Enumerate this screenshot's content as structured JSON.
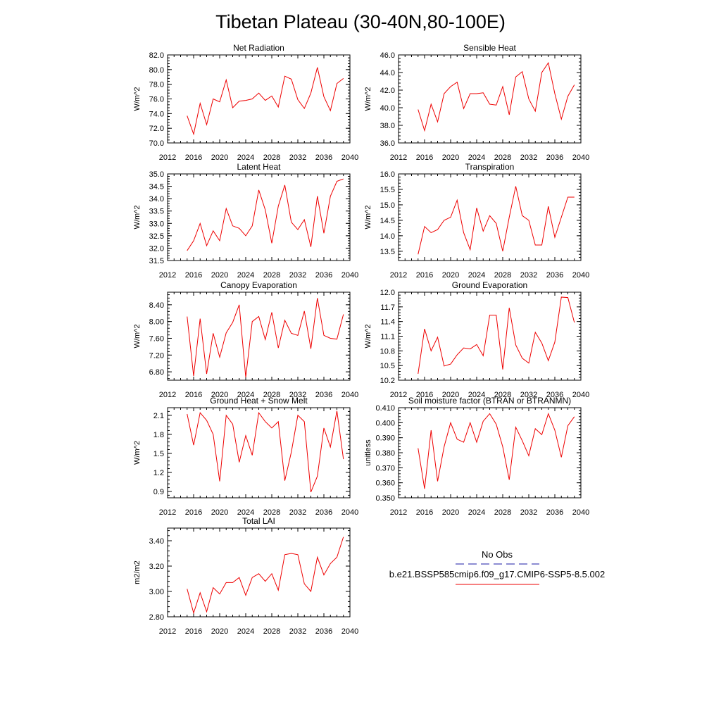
{
  "figure": {
    "suptitle": "Tibetan Plateau (30-40N,80-100E)"
  },
  "legend": {
    "entries": [
      {
        "label": "No Obs",
        "color": "#1a1aa6",
        "style": "dashed"
      },
      {
        "label": "b.e21.BSSP585cmip6.f09_g17.CMIP6-SSP5-8.5.002",
        "color": "#ee0000",
        "style": "solid"
      }
    ]
  },
  "chart_data": [
    {
      "type": "line",
      "title": "Net Radiation",
      "ylabel": "W/m^2",
      "xlabel": "",
      "xlim": [
        2012,
        2040
      ],
      "xticks": [
        "2012",
        "2016",
        "2020",
        "2024",
        "2028",
        "2032",
        "2036",
        "2040"
      ],
      "ylim": [
        70.0,
        82.0
      ],
      "yticks": [
        "70.0",
        "72.0",
        "74.0",
        "76.0",
        "78.0",
        "80.0",
        "82.0"
      ],
      "x": [
        2015,
        2016,
        2017,
        2018,
        2019,
        2020,
        2021,
        2022,
        2023,
        2024,
        2025,
        2026,
        2027,
        2028,
        2029,
        2030,
        2031,
        2032,
        2033,
        2034,
        2035,
        2036,
        2037,
        2038,
        2039
      ],
      "series": [
        {
          "color": "#ee0000",
          "values": [
            73.7,
            71.2,
            75.4,
            72.5,
            76.0,
            75.6,
            78.6,
            74.8,
            75.7,
            75.8,
            76.0,
            76.8,
            75.8,
            76.4,
            74.9,
            79.1,
            78.7,
            75.9,
            74.7,
            76.8,
            80.3,
            76.3,
            74.4,
            78.1,
            78.8
          ]
        }
      ]
    },
    {
      "type": "line",
      "title": "Sensible Heat",
      "ylabel": "W/m^2",
      "xlabel": "",
      "xlim": [
        2012,
        2040
      ],
      "xticks": [
        "2012",
        "2016",
        "2020",
        "2024",
        "2028",
        "2032",
        "2036",
        "2040"
      ],
      "ylim": [
        36.0,
        46.0
      ],
      "yticks": [
        "36.0",
        "38.0",
        "40.0",
        "42.0",
        "44.0",
        "46.0"
      ],
      "x": [
        2015,
        2016,
        2017,
        2018,
        2019,
        2020,
        2021,
        2022,
        2023,
        2024,
        2025,
        2026,
        2027,
        2028,
        2029,
        2030,
        2031,
        2032,
        2033,
        2034,
        2035,
        2036,
        2037,
        2038,
        2039
      ],
      "series": [
        {
          "color": "#ee0000",
          "values": [
            39.8,
            37.4,
            40.4,
            38.4,
            41.6,
            42.4,
            42.9,
            39.9,
            41.6,
            41.6,
            41.7,
            40.4,
            40.3,
            42.4,
            39.2,
            43.5,
            44.1,
            41.0,
            39.6,
            44.0,
            45.1,
            41.6,
            38.7,
            41.3,
            42.6
          ]
        }
      ]
    },
    {
      "type": "line",
      "title": "Latent Heat",
      "ylabel": "W/m^2",
      "xlabel": "",
      "xlim": [
        2012,
        2040
      ],
      "xticks": [
        "2012",
        "2016",
        "2020",
        "2024",
        "2028",
        "2032",
        "2036",
        "2040"
      ],
      "ylim": [
        31.5,
        35.0
      ],
      "yticks": [
        "31.5",
        "32.0",
        "32.5",
        "33.0",
        "33.5",
        "34.0",
        "34.5",
        "35.0"
      ],
      "x": [
        2015,
        2016,
        2017,
        2018,
        2019,
        2020,
        2021,
        2022,
        2023,
        2024,
        2025,
        2026,
        2027,
        2028,
        2029,
        2030,
        2031,
        2032,
        2033,
        2034,
        2035,
        2036,
        2037,
        2038,
        2039
      ],
      "series": [
        {
          "color": "#ee0000",
          "values": [
            31.9,
            32.3,
            33.0,
            32.1,
            32.7,
            32.3,
            33.6,
            32.9,
            32.8,
            32.5,
            32.9,
            34.35,
            33.55,
            32.2,
            33.7,
            34.55,
            33.05,
            32.75,
            33.15,
            32.05,
            34.1,
            32.6,
            34.1,
            34.7,
            34.8
          ]
        }
      ]
    },
    {
      "type": "line",
      "title": "Transpiration",
      "ylabel": "W/m^2",
      "xlabel": "",
      "xlim": [
        2012,
        2040
      ],
      "xticks": [
        "2012",
        "2016",
        "2020",
        "2024",
        "2028",
        "2032",
        "2036",
        "2040"
      ],
      "ylim": [
        13.2,
        16.0
      ],
      "yticks": [
        "13.5",
        "14.0",
        "14.5",
        "15.0",
        "15.5",
        "16.0"
      ],
      "x": [
        2015,
        2016,
        2017,
        2018,
        2019,
        2020,
        2021,
        2022,
        2023,
        2024,
        2025,
        2026,
        2027,
        2028,
        2029,
        2030,
        2031,
        2032,
        2033,
        2034,
        2035,
        2036,
        2037,
        2038,
        2039
      ],
      "series": [
        {
          "color": "#ee0000",
          "values": [
            13.4,
            14.3,
            14.1,
            14.2,
            14.5,
            14.6,
            15.15,
            14.1,
            13.55,
            14.9,
            14.15,
            14.65,
            14.4,
            13.5,
            14.6,
            15.6,
            14.65,
            14.5,
            13.7,
            13.7,
            14.95,
            13.95,
            14.6,
            15.25,
            15.25
          ]
        }
      ]
    },
    {
      "type": "line",
      "title": "Canopy Evaporation",
      "ylabel": "W/m^2",
      "xlabel": "",
      "xlim": [
        2012,
        2040
      ],
      "xticks": [
        "2012",
        "2016",
        "2020",
        "2024",
        "2028",
        "2032",
        "2036",
        "2040"
      ],
      "ylim": [
        6.6,
        8.7
      ],
      "yticks": [
        "6.80",
        "7.20",
        "7.60",
        "8.00",
        "8.40"
      ],
      "x": [
        2015,
        2016,
        2017,
        2018,
        2019,
        2020,
        2021,
        2022,
        2023,
        2024,
        2025,
        2026,
        2027,
        2028,
        2029,
        2030,
        2031,
        2032,
        2033,
        2034,
        2035,
        2036,
        2037,
        2038,
        2039
      ],
      "series": [
        {
          "color": "#ee0000",
          "values": [
            8.12,
            6.7,
            8.07,
            6.75,
            7.72,
            7.15,
            7.73,
            7.98,
            8.4,
            6.67,
            8.0,
            8.12,
            7.57,
            8.22,
            7.37,
            8.03,
            7.72,
            7.67,
            8.25,
            7.35,
            8.56,
            7.67,
            7.6,
            7.58,
            8.17
          ]
        }
      ]
    },
    {
      "type": "line",
      "title": "Ground Evaporation",
      "ylabel": "W/m^2",
      "xlabel": "",
      "xlim": [
        2012,
        2040
      ],
      "xticks": [
        "2012",
        "2016",
        "2020",
        "2024",
        "2028",
        "2032",
        "2036",
        "2040"
      ],
      "ylim": [
        10.2,
        12.0
      ],
      "yticks": [
        "10.2",
        "10.5",
        "10.8",
        "11.1",
        "11.4",
        "11.7",
        "12.0"
      ],
      "x": [
        2015,
        2016,
        2017,
        2018,
        2019,
        2020,
        2021,
        2022,
        2023,
        2024,
        2025,
        2026,
        2027,
        2028,
        2029,
        2030,
        2031,
        2032,
        2033,
        2034,
        2035,
        2036,
        2037,
        2038,
        2039
      ],
      "series": [
        {
          "color": "#ee0000",
          "values": [
            10.33,
            11.25,
            10.8,
            11.08,
            10.49,
            10.53,
            10.72,
            10.86,
            10.84,
            10.93,
            10.7,
            11.53,
            11.53,
            10.42,
            11.68,
            10.92,
            10.65,
            10.55,
            11.18,
            10.96,
            10.6,
            10.98,
            11.9,
            11.89,
            11.38
          ]
        }
      ]
    },
    {
      "type": "line",
      "title": "Ground Heat + Snow Melt",
      "ylabel": "W/m^2",
      "xlabel": "",
      "xlim": [
        2012,
        2040
      ],
      "xticks": [
        "2012",
        "2016",
        "2020",
        "2024",
        "2028",
        "2032",
        "2036",
        "2040"
      ],
      "ylim": [
        0.8,
        2.22
      ],
      "yticks": [
        "0.9",
        "1.2",
        "1.5",
        "1.8",
        "2.1"
      ],
      "x": [
        2015,
        2016,
        2017,
        2018,
        2019,
        2020,
        2021,
        2022,
        2023,
        2024,
        2025,
        2026,
        2027,
        2028,
        2029,
        2030,
        2031,
        2032,
        2033,
        2034,
        2035,
        2036,
        2037,
        2038,
        2039
      ],
      "series": [
        {
          "color": "#ee0000",
          "values": [
            2.12,
            1.63,
            2.14,
            2.02,
            1.8,
            1.06,
            2.1,
            1.96,
            1.36,
            1.78,
            1.47,
            2.14,
            2.0,
            1.9,
            2.0,
            1.07,
            1.52,
            2.1,
            2.0,
            0.89,
            1.14,
            1.9,
            1.6,
            2.17,
            1.41
          ]
        }
      ]
    },
    {
      "type": "line",
      "title": "Soil moisture factor (BTRAN or BTRANMN)",
      "ylabel": "unitless",
      "xlabel": "",
      "xlim": [
        2012,
        2040
      ],
      "xticks": [
        "2012",
        "2016",
        "2020",
        "2024",
        "2028",
        "2032",
        "2036",
        "2040"
      ],
      "ylim": [
        0.35,
        0.41
      ],
      "yticks": [
        "0.350",
        "0.360",
        "0.370",
        "0.380",
        "0.390",
        "0.400",
        "0.410"
      ],
      "x": [
        2015,
        2016,
        2017,
        2018,
        2019,
        2020,
        2021,
        2022,
        2023,
        2024,
        2025,
        2026,
        2027,
        2028,
        2029,
        2030,
        2031,
        2032,
        2033,
        2034,
        2035,
        2036,
        2037,
        2038,
        2039
      ],
      "series": [
        {
          "color": "#ee0000",
          "values": [
            0.383,
            0.356,
            0.395,
            0.361,
            0.384,
            0.4,
            0.389,
            0.387,
            0.4,
            0.387,
            0.401,
            0.406,
            0.399,
            0.384,
            0.362,
            0.397,
            0.388,
            0.378,
            0.396,
            0.392,
            0.406,
            0.395,
            0.377,
            0.398,
            0.404
          ]
        }
      ]
    },
    {
      "type": "line",
      "title": "Total LAI",
      "ylabel": "m2/m2",
      "xlabel": "",
      "xlim": [
        2012,
        2040
      ],
      "xticks": [
        "2012",
        "2016",
        "2020",
        "2024",
        "2028",
        "2032",
        "2036",
        "2040"
      ],
      "ylim": [
        2.8,
        3.5
      ],
      "yticks": [
        "2.80",
        "3.00",
        "3.20",
        "3.40"
      ],
      "x": [
        2015,
        2016,
        2017,
        2018,
        2019,
        2020,
        2021,
        2022,
        2023,
        2024,
        2025,
        2026,
        2027,
        2028,
        2029,
        2030,
        2031,
        2032,
        2033,
        2034,
        2035,
        2036,
        2037,
        2038,
        2039
      ],
      "series": [
        {
          "color": "#ee0000",
          "values": [
            3.02,
            2.83,
            2.99,
            2.84,
            3.03,
            2.98,
            3.07,
            3.07,
            3.11,
            2.97,
            3.11,
            3.14,
            3.08,
            3.14,
            3.01,
            3.29,
            3.3,
            3.29,
            3.06,
            3.0,
            3.27,
            3.13,
            3.22,
            3.27,
            3.43
          ]
        }
      ]
    }
  ]
}
